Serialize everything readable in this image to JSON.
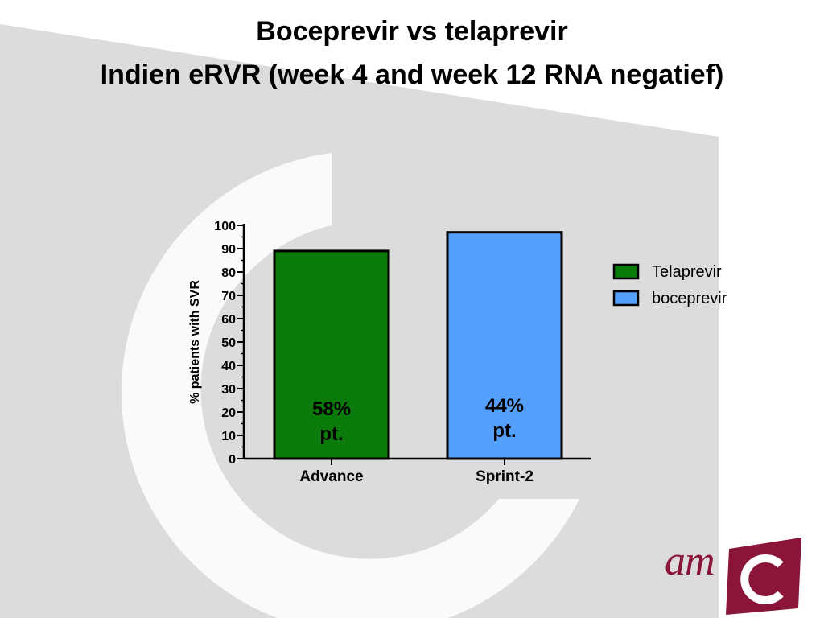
{
  "title": "Boceprevir vs telaprevir",
  "subtitle": "Indien eRVR (week 4 and week 12 RNA negatief)",
  "logo": {
    "text": "am",
    "color": "#8a1538"
  },
  "chart_data": {
    "type": "bar",
    "categories": [
      "Advance",
      "Sprint-2"
    ],
    "values": [
      89,
      97
    ],
    "ylabel": "%  patients with  SVR",
    "ylim": [
      0,
      100
    ],
    "yticks": [
      0,
      10,
      20,
      30,
      40,
      50,
      60,
      70,
      80,
      90,
      100
    ],
    "bar_labels": [
      [
        "58%",
        "pt."
      ],
      [
        "44%",
        "pt."
      ]
    ],
    "bar_colors": [
      "#0a7a0a",
      "#559ffc"
    ],
    "legend": [
      {
        "name": "Telaprevir",
        "color": "#0a7a0a"
      },
      {
        "name": "boceprevir",
        "color": "#559ffc"
      }
    ],
    "legend_position": "right",
    "grid": false
  }
}
